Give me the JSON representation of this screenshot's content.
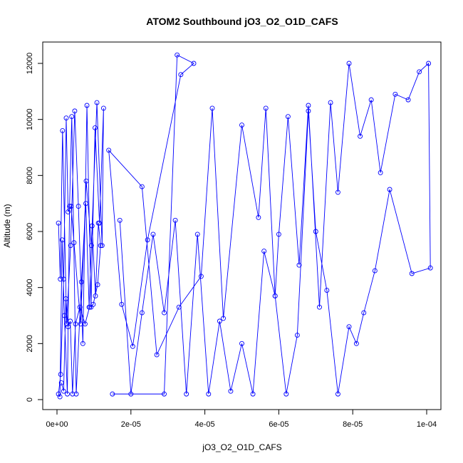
{
  "chart_data": {
    "type": "line",
    "title": "ATOM2 Southbound jO3_O2_O1D_CAFS",
    "xlabel": "jO3_O2_O1D_CAFS",
    "ylabel": "Altitude (m)",
    "xlim": [
      0,
      0.000104
    ],
    "ylim": [
      -200,
      12500
    ],
    "x_ticks": [
      0,
      2e-05,
      4e-05,
      6e-05,
      8e-05,
      0.0001
    ],
    "x_tick_labels": [
      "0e+00",
      "2e-05",
      "4e-05",
      "6e-05",
      "8e-05",
      "1e-04"
    ],
    "y_ticks": [
      0,
      2000,
      4000,
      6000,
      8000,
      10000,
      12000
    ],
    "y_tick_labels": [
      "0",
      "2000",
      "4000",
      "6000",
      "8000",
      "10000",
      "12000"
    ],
    "grid": false,
    "legend": "none",
    "marker": "open-circle",
    "series_color": "#0000ff",
    "series": [
      {
        "x": [
          4e-07,
          9e-07,
          1.5e-06,
          2.6e-06,
          3.7e-06,
          4.8e-06,
          5.8e-06,
          7e-06,
          8.1e-06,
          9.2e-06,
          1.03e-05,
          1.15e-05,
          1.26e-05,
          1.22e-05,
          1.08e-05,
          9.3e-06,
          7.9e-06,
          6.4e-06,
          4.6e-06,
          3.8e-06,
          3e-06,
          2.5e-06,
          1.8e-06,
          1e-06,
          4e-07,
          8e-07,
          1.4e-06,
          2e-06,
          2.8e-06,
          3.4e-06,
          4e-06,
          5.2e-06,
          6.6e-06,
          7.8e-06,
          8.7e-06,
          9.5e-06,
          1.04e-05,
          1.12e-05,
          1.18e-05,
          1.1e-05,
          9.8e-06,
          8.8e-06,
          7.6e-06,
          6.2e-06,
          5e-06,
          4.2e-06,
          3.6e-06,
          3e-06,
          2.4e-06,
          1.8e-06,
          1.2e-06
        ],
        "y": [
          6300,
          4300,
          9600,
          2700,
          5500,
          10300,
          6900,
          2000,
          10500,
          3300,
          9700,
          6300,
          10400,
          5500,
          10600,
          5500,
          7800,
          2700,
          5600,
          6900,
          6700,
          10050,
          4300,
          900,
          200,
          100,
          5700,
          3000,
          200,
          6900,
          10100,
          200,
          4200,
          7000,
          3300,
          6200,
          3700,
          6300,
          5500,
          4100,
          3400,
          3300,
          2700,
          3300,
          2700,
          200,
          2800,
          2600,
          3600,
          300,
          600
        ]
      },
      {
        "x": [
          1.5e-05,
          2.9e-05,
          3.25e-05,
          3.7e-05,
          3.35e-05,
          2.45e-05,
          2.05e-05,
          1.75e-05,
          1.4e-05,
          2.3e-05,
          2.7e-05,
          3.3e-05,
          3.9e-05,
          4.2e-05,
          4.5e-05,
          5e-05,
          5.45e-05,
          5.65e-05,
          5.9e-05,
          6e-05,
          6.25e-05,
          6.55e-05,
          6.8e-05,
          7.1e-05,
          7.4e-05,
          7.6e-05,
          7.9e-05,
          8.2e-05,
          8.5e-05,
          8.75e-05,
          9.15e-05,
          9.5e-05,
          9.8e-05,
          0.0001005,
          0.000101,
          9.6e-05,
          9e-05,
          8.6e-05,
          8.3e-05,
          8.1e-05,
          7.9e-05,
          7.6e-05,
          7.3e-05,
          7e-05,
          6.8e-05,
          6.5e-05,
          6.2e-05,
          5.9e-05,
          5.6e-05,
          5.3e-05,
          5e-05,
          4.7e-05,
          4.4e-05,
          4.1e-05,
          3.8e-05,
          3.5e-05,
          3.2e-05,
          2.9e-05,
          2.6e-05,
          2.3e-05,
          2e-05,
          1.7e-05
        ],
        "y": [
          200,
          200,
          12300,
          12000,
          11600,
          5700,
          1900,
          3400,
          8900,
          7600,
          1600,
          3300,
          4400,
          10400,
          2900,
          9800,
          6500,
          10400,
          3700,
          5900,
          10100,
          4800,
          10500,
          3300,
          10600,
          7400,
          12000,
          9400,
          10700,
          8100,
          10900,
          10700,
          11700,
          12000,
          4700,
          4500,
          7500,
          4600,
          3100,
          2000,
          2600,
          200,
          3900,
          6000,
          10300,
          2300,
          200,
          3700,
          5300,
          200,
          2000,
          300,
          2800,
          200,
          5900,
          200,
          6400,
          3100,
          5900,
          3100,
          200,
          6400
        ]
      }
    ]
  }
}
